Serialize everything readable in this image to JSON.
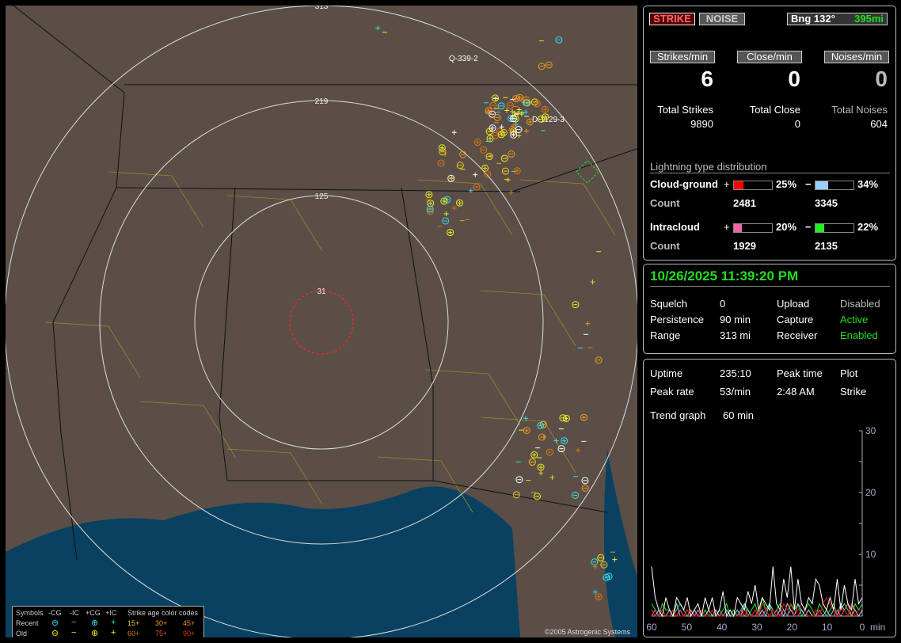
{
  "map": {
    "range_labels": [
      "313",
      "219",
      "125",
      "31"
    ],
    "track_labels": [
      "Q-339-2",
      "D-1129-3"
    ],
    "copyright": "©2005 Astrogenic Systems",
    "legend": {
      "header": [
        "Symbols",
        "-CG",
        "-IC",
        "+CG",
        "+IC"
      ],
      "rows": [
        {
          "label": "Recent",
          "color": "#33ddee"
        },
        {
          "label": "Old",
          "color": "#eeee22"
        }
      ],
      "age_title": "Strike age color codes",
      "ages": [
        {
          "label": "15+",
          "color": "#eecc22"
        },
        {
          "label": "30+",
          "color": "#ee9922"
        },
        {
          "label": "45+",
          "color": "#ee8811"
        },
        {
          "label": "60+",
          "color": "#dd7711"
        },
        {
          "label": "75+",
          "color": "#dd5511"
        },
        {
          "label": "90+",
          "color": "#dd3311"
        }
      ]
    }
  },
  "top": {
    "strike_button": "STRIKE",
    "noise_button": "NOISE",
    "bearing": "Bng 132°",
    "distance": "395mi",
    "rates": [
      {
        "label": "Strikes/min",
        "value": "6",
        "total_label": "Total Strikes",
        "total": "9890"
      },
      {
        "label": "Close/min",
        "value": "0",
        "total_label": "Total Close",
        "total": "0"
      },
      {
        "label": "Noises/min",
        "value": "0",
        "total_label": "Total Noises",
        "total": "604"
      }
    ],
    "distribution_title": "Lightning type distribution",
    "types": [
      {
        "name": "Cloud-ground",
        "count_label": "Count",
        "pos_pct": 25,
        "pos_pct_label": "25%",
        "pos_color": "#ff0000",
        "pos_count": "2481",
        "neg_pct": 34,
        "neg_pct_label": "34%",
        "neg_color": "#99ccff",
        "neg_count": "3345"
      },
      {
        "name": "Intracloud",
        "count_label": "Count",
        "pos_pct": 20,
        "pos_pct_label": "20%",
        "pos_color": "#ee66aa",
        "pos_count": "1929",
        "neg_pct": 22,
        "neg_pct_label": "22%",
        "neg_color": "#22ee22",
        "neg_count": "2135"
      }
    ]
  },
  "status": {
    "datetime": "10/26/2025 11:39:20 PM",
    "rows": [
      [
        "Squelch",
        "0",
        "Upload",
        "Disabled"
      ],
      [
        "Persistence",
        "90 min",
        "Capture",
        "Active"
      ],
      [
        "Range",
        "313 mi",
        "Receiver",
        "Enabled"
      ]
    ]
  },
  "stats": {
    "uptime_label": "Uptime",
    "uptime": "235:10",
    "peak_time_label": "Peak time",
    "plot_label": "Plot",
    "peak_rate_label": "Peak rate",
    "peak_rate": "53/min",
    "peak_time": "2:48 AM",
    "plot": "Strike",
    "trend_label": "Trend graph",
    "trend": "60 min"
  },
  "chart_data": {
    "type": "line",
    "xlabel": "min",
    "x_ticks": [
      "60",
      "50",
      "40",
      "30",
      "20",
      "10",
      "0"
    ],
    "y_ticks": [
      "10",
      "20",
      "30"
    ],
    "xlim": [
      60,
      0
    ],
    "ylim": [
      0,
      30
    ],
    "series": [
      {
        "color": "#ffffff",
        "values": [
          8,
          3,
          1,
          0,
          3,
          1,
          0,
          3,
          2,
          1,
          3,
          0,
          1,
          2,
          0,
          3,
          1,
          3,
          0,
          1,
          4,
          0,
          1,
          0,
          3,
          2,
          1,
          4,
          2,
          5,
          1,
          3,
          2,
          1,
          8,
          2,
          1,
          6,
          3,
          8,
          1,
          6,
          2,
          1,
          3,
          2,
          6,
          5,
          2,
          1,
          3,
          1,
          6,
          1,
          5,
          2,
          1,
          6,
          2,
          3
        ]
      },
      {
        "color": "#ff0000",
        "values": [
          1,
          0,
          0,
          1,
          0,
          0,
          1,
          0,
          0,
          0,
          1,
          0,
          0,
          0,
          1,
          0,
          0,
          1,
          0,
          0,
          0,
          0,
          1,
          0,
          0,
          0,
          1,
          0,
          0,
          1,
          0,
          2,
          1,
          0,
          1,
          0,
          0,
          2,
          1,
          2,
          0,
          1,
          2,
          1,
          0,
          0,
          1,
          0,
          2,
          3,
          2,
          1,
          0,
          1,
          1,
          0,
          2,
          0,
          1,
          1
        ]
      },
      {
        "color": "#99ccff",
        "values": [
          1,
          0,
          1,
          0,
          0,
          1,
          0,
          2,
          0,
          0,
          1,
          0,
          1,
          0,
          0,
          0,
          1,
          0,
          1,
          0,
          0,
          1,
          0,
          0,
          1,
          0,
          2,
          1,
          0,
          1,
          0,
          1,
          0,
          2,
          1,
          0,
          1,
          0,
          2,
          1,
          0,
          2,
          1,
          0,
          1,
          0,
          1,
          0,
          0,
          1,
          0,
          1,
          0,
          2,
          1,
          0,
          2,
          1,
          0,
          1
        ]
      },
      {
        "color": "#ee66aa",
        "values": [
          0,
          1,
          0,
          1,
          0,
          0,
          1,
          0,
          1,
          0,
          0,
          1,
          0,
          1,
          0,
          0,
          1,
          0,
          0,
          1,
          0,
          0,
          1,
          0,
          0,
          1,
          0,
          1,
          0,
          0,
          1,
          0,
          1,
          0,
          0,
          1,
          0,
          1,
          0,
          1,
          0,
          0,
          1,
          0,
          1,
          0,
          0,
          1,
          0,
          1,
          0,
          0,
          1,
          0,
          1,
          2,
          0,
          1,
          0,
          1
        ]
      },
      {
        "color": "#22ee22",
        "values": [
          2,
          1,
          0,
          2,
          1,
          1,
          0,
          1,
          2,
          1,
          0,
          1,
          0,
          1,
          0,
          1,
          0,
          0,
          1,
          0,
          1,
          2,
          0,
          1,
          0,
          1,
          2,
          0,
          1,
          2,
          0,
          3,
          1,
          2,
          0,
          1,
          2,
          1,
          0,
          2,
          1,
          2,
          0,
          1,
          2,
          1,
          0,
          2,
          1,
          0,
          1,
          2,
          0,
          1,
          2,
          1,
          0,
          2,
          1,
          2
        ]
      }
    ]
  }
}
